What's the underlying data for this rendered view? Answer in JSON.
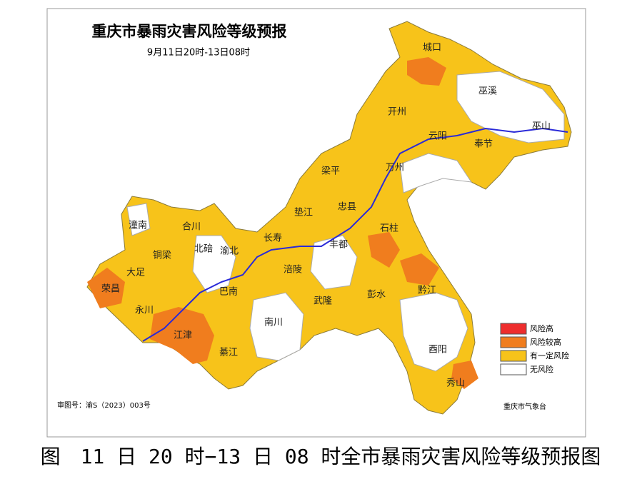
{
  "map": {
    "title": "重庆市暴雨灾害风险等级预报",
    "subtitle": "9月11日20时-13日08时",
    "districts": [
      "城口",
      "巫溪",
      "开州",
      "云阳",
      "巫山",
      "奉节",
      "万州",
      "梁平",
      "垫江",
      "忠县",
      "石柱",
      "潼南",
      "合川",
      "铜梁",
      "北碚",
      "渝北",
      "大足",
      "荣昌",
      "永川",
      "长寿",
      "涪陵",
      "丰都",
      "巴南",
      "彭水",
      "黔江",
      "武隆",
      "南川",
      "江津",
      "綦江",
      "酉阳",
      "秀山"
    ],
    "legend": [
      {
        "label": "风险高",
        "color": "#ee2d2d"
      },
      {
        "label": "风险较高",
        "color": "#f07d1e"
      },
      {
        "label": "有一定风险",
        "color": "#f7c31a"
      },
      {
        "label": "无风险",
        "color": "#ffffff"
      }
    ],
    "approval": "审图号：渝S（2023）003号",
    "agency": "重庆市气象台"
  },
  "caption": "图　11 日 20 时−13 日 08 时全市暴雨灾害风险等级预报图"
}
